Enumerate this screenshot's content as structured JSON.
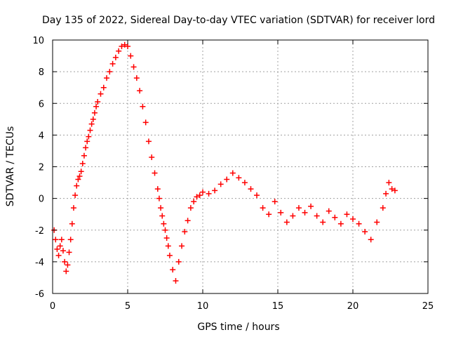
{
  "chart_data": {
    "type": "scatter",
    "title": "Day 135 of 2022, Sidereal Day-to-day VTEC variation (SDTVAR) for receiver lord",
    "xlabel": "GPS time / hours",
    "ylabel": "SDTVAR / TECUs",
    "xlim": [
      0,
      25
    ],
    "ylim": [
      -6,
      10
    ],
    "xticks": [
      0,
      5,
      10,
      15,
      20,
      25
    ],
    "yticks": [
      -6,
      -4,
      -2,
      0,
      2,
      4,
      6,
      8,
      10
    ],
    "grid": true,
    "marker": "+",
    "series": [
      {
        "name": "SDTVAR",
        "color": "#ff0000",
        "x": [
          0.1,
          0.2,
          0.3,
          0.4,
          0.5,
          0.6,
          0.7,
          0.8,
          0.9,
          1.0,
          1.1,
          1.2,
          1.3,
          1.4,
          1.5,
          1.6,
          1.7,
          1.8,
          1.9,
          2.0,
          2.1,
          2.2,
          2.3,
          2.4,
          2.5,
          2.6,
          2.7,
          2.8,
          2.9,
          3.0,
          3.2,
          3.4,
          3.6,
          3.8,
          4.0,
          4.2,
          4.4,
          4.6,
          4.8,
          5.0,
          5.2,
          5.4,
          5.6,
          5.8,
          6.0,
          6.2,
          6.4,
          6.6,
          6.8,
          7.0,
          7.1,
          7.2,
          7.3,
          7.4,
          7.5,
          7.6,
          7.7,
          7.8,
          8.0,
          8.2,
          8.4,
          8.6,
          8.8,
          9.0,
          9.2,
          9.4,
          9.6,
          9.8,
          10.0,
          10.4,
          10.8,
          11.2,
          11.6,
          12.0,
          12.4,
          12.8,
          13.2,
          13.6,
          14.0,
          14.4,
          14.8,
          15.2,
          15.6,
          16.0,
          16.4,
          16.8,
          17.2,
          17.6,
          18.0,
          18.4,
          18.8,
          19.2,
          19.6,
          20.0,
          20.4,
          20.8,
          21.2,
          21.6,
          22.0,
          22.2,
          22.4,
          22.6,
          22.8
        ],
        "y": [
          -2.0,
          -2.6,
          -3.2,
          -3.6,
          -3.0,
          -2.6,
          -3.3,
          -4.0,
          -4.6,
          -4.2,
          -3.4,
          -2.6,
          -1.6,
          -0.6,
          0.2,
          0.8,
          1.2,
          1.4,
          1.7,
          2.2,
          2.7,
          3.2,
          3.6,
          3.9,
          4.3,
          4.7,
          5.0,
          5.4,
          5.8,
          6.1,
          6.6,
          7.0,
          7.6,
          8.0,
          8.5,
          8.9,
          9.3,
          9.6,
          9.7,
          9.6,
          9.0,
          8.3,
          7.6,
          6.8,
          5.8,
          4.8,
          3.6,
          2.6,
          1.6,
          0.6,
          0.0,
          -0.6,
          -1.1,
          -1.6,
          -2.0,
          -2.5,
          -3.0,
          -3.6,
          -4.5,
          -5.2,
          -4.0,
          -3.0,
          -2.1,
          -1.4,
          -0.6,
          -0.2,
          0.1,
          0.2,
          0.4,
          0.3,
          0.5,
          0.9,
          1.2,
          1.6,
          1.3,
          1.0,
          0.6,
          0.2,
          -0.6,
          -1.0,
          -0.2,
          -0.9,
          -1.5,
          -1.1,
          -0.6,
          -0.9,
          -0.5,
          -1.1,
          -1.5,
          -0.8,
          -1.2,
          -1.6,
          -1.0,
          -1.3,
          -1.6,
          -2.1,
          -2.6,
          -1.5,
          -0.6,
          0.3,
          1.0,
          0.6,
          0.5
        ]
      }
    ]
  }
}
